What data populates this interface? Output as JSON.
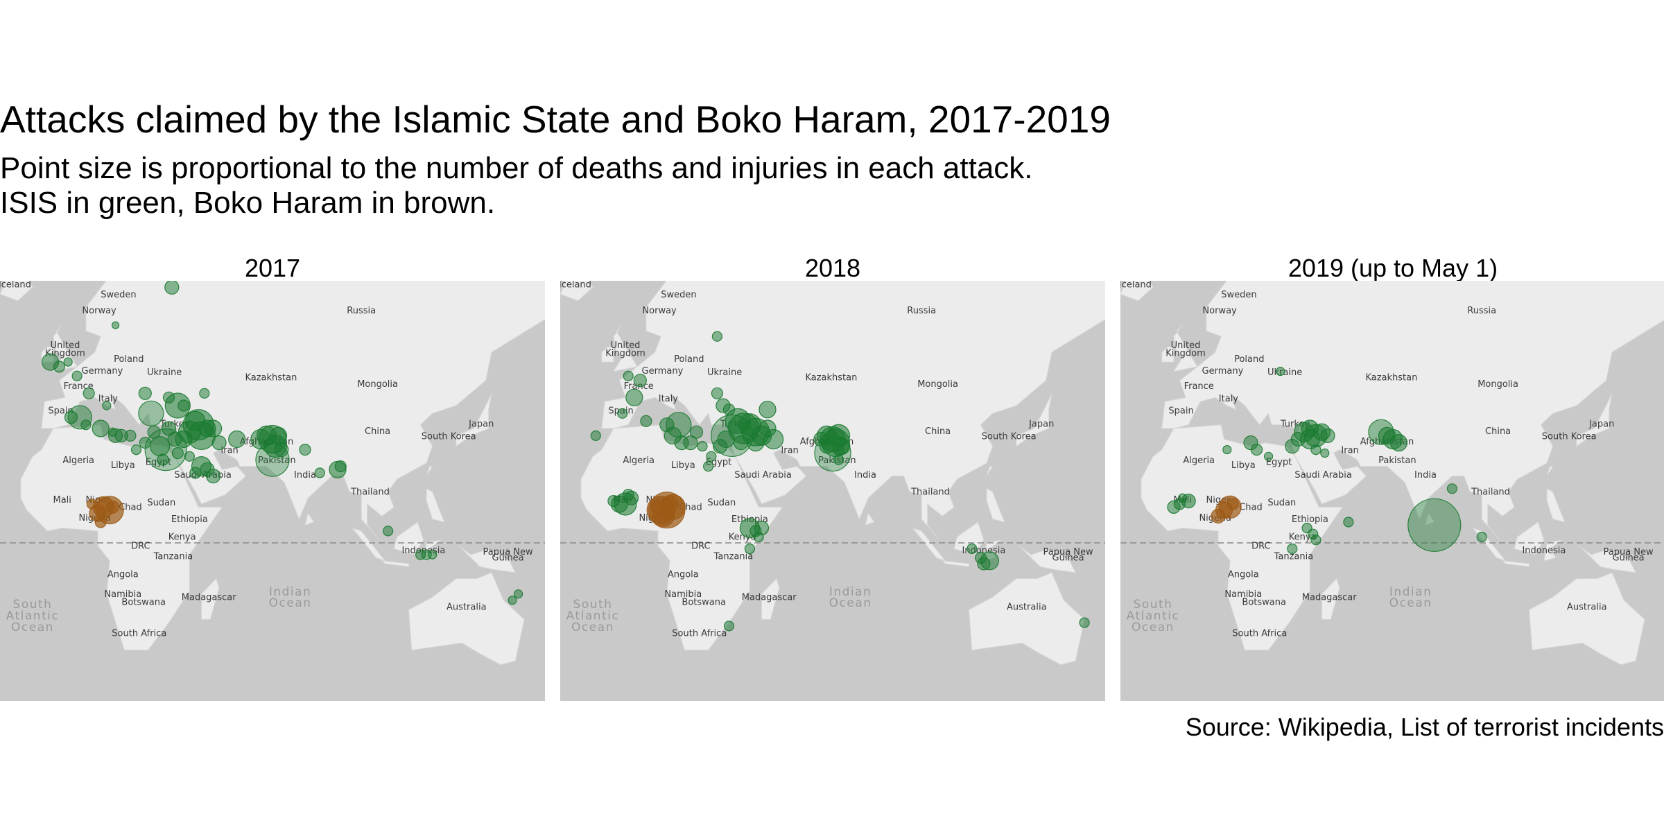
{
  "title": "Attacks claimed by the Islamic State and Boko Haram, 2017-2019",
  "subtitle_line1": "Point size is proportional to the number of deaths and injuries in each attack.",
  "subtitle_line2": "ISIS in green, Boko Haram in brown.",
  "source": "Source: Wikipedia, List of terrorist incidents",
  "colors": {
    "isis": "#1a7a30",
    "boko_haram": "#9c5a16",
    "water": "#c9c9c9",
    "land": "#ececec",
    "equator": "#8a8a8a"
  },
  "map_labels": [
    {
      "text": "Iceland",
      "lon": -19,
      "lat": 65,
      "kind": "country"
    },
    {
      "text": "Sweden",
      "lon": 16,
      "lat": 63.5,
      "kind": "country"
    },
    {
      "text": "Norway",
      "lon": 9.5,
      "lat": 61,
      "kind": "country"
    },
    {
      "text": "Russia",
      "lon": 98,
      "lat": 61,
      "kind": "country"
    },
    {
      "text": "United",
      "lon": -2,
      "lat": 54.8,
      "kind": "country"
    },
    {
      "text": "Kingdom",
      "lon": -2,
      "lat": 53.2,
      "kind": "country"
    },
    {
      "text": "Poland",
      "lon": 19.5,
      "lat": 52,
      "kind": "country"
    },
    {
      "text": "Germany",
      "lon": 10.5,
      "lat": 49.5,
      "kind": "country"
    },
    {
      "text": "Ukraine",
      "lon": 31.5,
      "lat": 49.2,
      "kind": "country"
    },
    {
      "text": "Kazakhstan",
      "lon": 67.5,
      "lat": 48,
      "kind": "country"
    },
    {
      "text": "Mongolia",
      "lon": 103.5,
      "lat": 46.5,
      "kind": "country"
    },
    {
      "text": "France",
      "lon": 2.5,
      "lat": 46,
      "kind": "country"
    },
    {
      "text": "Italy",
      "lon": 12.5,
      "lat": 43,
      "kind": "country"
    },
    {
      "text": "Spain",
      "lon": -3.5,
      "lat": 40,
      "kind": "country"
    },
    {
      "text": "Japan",
      "lon": 138.5,
      "lat": 36.5,
      "kind": "country"
    },
    {
      "text": "China",
      "lon": 103.5,
      "lat": 34.5,
      "kind": "country"
    },
    {
      "text": "South Korea",
      "lon": 127.5,
      "lat": 33,
      "kind": "country"
    },
    {
      "text": "Turkey",
      "lon": 35,
      "lat": 36.5,
      "kind": "country"
    },
    {
      "text": "Afghanistan",
      "lon": 66,
      "lat": 31.5,
      "kind": "country"
    },
    {
      "text": "Iran",
      "lon": 53.5,
      "lat": 29,
      "kind": "country"
    },
    {
      "text": "Algeria",
      "lon": 2.5,
      "lat": 26,
      "kind": "country"
    },
    {
      "text": "Libya",
      "lon": 17.5,
      "lat": 24.5,
      "kind": "country"
    },
    {
      "text": "Egypt",
      "lon": 29.5,
      "lat": 25.5,
      "kind": "country"
    },
    {
      "text": "Pakistan",
      "lon": 69.5,
      "lat": 26,
      "kind": "country"
    },
    {
      "text": "Saudi Arabia",
      "lon": 44.5,
      "lat": 21.5,
      "kind": "country"
    },
    {
      "text": "India",
      "lon": 79,
      "lat": 21.5,
      "kind": "country"
    },
    {
      "text": "Thailand",
      "lon": 101,
      "lat": 16,
      "kind": "country"
    },
    {
      "text": "Mali",
      "lon": -3,
      "lat": 13.5,
      "kind": "country"
    },
    {
      "text": "Niger",
      "lon": 9,
      "lat": 13.5,
      "kind": "country"
    },
    {
      "text": "Chad",
      "lon": 20,
      "lat": 11,
      "kind": "country"
    },
    {
      "text": "Sudan",
      "lon": 30.5,
      "lat": 12.5,
      "kind": "country"
    },
    {
      "text": "Nigeria",
      "lon": 8,
      "lat": 7.5,
      "kind": "country"
    },
    {
      "text": "Ethiopia",
      "lon": 40,
      "lat": 7,
      "kind": "country"
    },
    {
      "text": "Kenya",
      "lon": 37.5,
      "lat": 1,
      "kind": "country"
    },
    {
      "text": "DRC",
      "lon": 23.5,
      "lat": -2,
      "kind": "country"
    },
    {
      "text": "Indonesia",
      "lon": 119,
      "lat": -3.5,
      "kind": "country"
    },
    {
      "text": "Papua New",
      "lon": 147.5,
      "lat": -4,
      "kind": "country"
    },
    {
      "text": "Guinea",
      "lon": 147.5,
      "lat": -6,
      "kind": "country"
    },
    {
      "text": "Tanzania",
      "lon": 34.5,
      "lat": -5.5,
      "kind": "country"
    },
    {
      "text": "Angola",
      "lon": 17.5,
      "lat": -11.5,
      "kind": "country"
    },
    {
      "text": "Namibia",
      "lon": 17.5,
      "lat": -18,
      "kind": "country"
    },
    {
      "text": "Madagascar",
      "lon": 46.5,
      "lat": -19,
      "kind": "country"
    },
    {
      "text": "Botswana",
      "lon": 24.5,
      "lat": -20.5,
      "kind": "country"
    },
    {
      "text": "Australia",
      "lon": 133.5,
      "lat": -22,
      "kind": "country"
    },
    {
      "text": "South Africa",
      "lon": 23,
      "lat": -30,
      "kind": "country"
    },
    {
      "text": "Indian",
      "lon": 74,
      "lat": -17.5,
      "kind": "ocean"
    },
    {
      "text": "Ocean",
      "lon": 74,
      "lat": -21,
      "kind": "ocean"
    },
    {
      "text": "South",
      "lon": -13,
      "lat": -21.5,
      "kind": "ocean"
    },
    {
      "text": "Atlantic",
      "lon": -13,
      "lat": -25,
      "kind": "ocean"
    },
    {
      "text": "Ocean",
      "lon": -13,
      "lat": -28.5,
      "kind": "ocean"
    }
  ],
  "panels": [
    {
      "id": "2017",
      "label": "2017",
      "isis": [
        [
          36,
          42,
          18,
          0.55
        ],
        [
          40,
          35,
          16,
          0.55
        ],
        [
          42,
          38,
          14,
          0.55
        ],
        [
          44,
          34,
          20,
          0.55
        ],
        [
          38,
          33,
          12,
          0.55
        ],
        [
          33,
          36,
          10,
          0.55
        ],
        [
          46,
          36,
          12,
          0.55
        ],
        [
          43,
          37,
          22,
          0.55
        ],
        [
          32,
          30,
          30,
          0.35
        ],
        [
          30,
          31,
          14,
          0.5
        ],
        [
          31,
          27,
          8,
          0.5
        ],
        [
          35,
          33,
          10,
          0.5
        ],
        [
          48,
          36,
          12,
          0.5
        ],
        [
          50,
          32,
          10,
          0.5
        ],
        [
          36,
          29,
          8,
          0.5
        ],
        [
          28,
          35,
          9,
          0.5
        ],
        [
          56,
          33,
          12,
          0.5
        ],
        [
          40,
          28,
          7,
          0.5
        ],
        [
          66,
          34,
          14,
          0.55
        ],
        [
          68,
          33,
          20,
          0.55
        ],
        [
          69,
          31,
          16,
          0.55
        ],
        [
          70,
          34,
          12,
          0.55
        ],
        [
          68,
          27,
          24,
          0.35
        ],
        [
          64,
          33,
          14,
          0.5
        ],
        [
          71,
          30,
          10,
          0.5
        ],
        [
          -7,
          52,
          12,
          0.5
        ],
        [
          -4,
          51,
          8,
          0.5
        ],
        [
          2,
          49,
          7,
          0.5
        ],
        [
          -1,
          52,
          6,
          0.5
        ],
        [
          6,
          45,
          8,
          0.5
        ],
        [
          3,
          39,
          17,
          0.45
        ],
        [
          12,
          42,
          6,
          0.5
        ],
        [
          0,
          39,
          9,
          0.5
        ],
        [
          14,
          35,
          6,
          0.5
        ],
        [
          10,
          36,
          12,
          0.5
        ],
        [
          15,
          34,
          10,
          0.5
        ],
        [
          17,
          34,
          9,
          0.5
        ],
        [
          5,
          37,
          7,
          0.5
        ],
        [
          20,
          34,
          8,
          0.5
        ],
        [
          25,
          32,
          8,
          0.5
        ],
        [
          22,
          30,
          7,
          0.5
        ],
        [
          34,
          65,
          10,
          0.5
        ],
        [
          15,
          59,
          5,
          0.5
        ],
        [
          38,
          42,
          8,
          0.5
        ],
        [
          33,
          44,
          8,
          0.5
        ],
        [
          45,
          45,
          7,
          0.5
        ],
        [
          27,
          40,
          18,
          0.4
        ],
        [
          25,
          45,
          9,
          0.5
        ],
        [
          44,
          25,
          14,
          0.55
        ],
        [
          46,
          24,
          10,
          0.5
        ],
        [
          48,
          22,
          10,
          0.5
        ],
        [
          42,
          23,
          8,
          0.5
        ],
        [
          79,
          30,
          8,
          0.5
        ],
        [
          84,
          23,
          7,
          0.5
        ],
        [
          90,
          24,
          12,
          0.55
        ],
        [
          91,
          25,
          8,
          0.5
        ],
        [
          107,
          4,
          7,
          0.5
        ],
        [
          118,
          -4,
          7,
          0.5
        ],
        [
          120,
          -4,
          7,
          0.5
        ],
        [
          122,
          -4,
          6,
          0.5
        ],
        [
          149,
          -19,
          6,
          0.5
        ],
        [
          151,
          -17,
          6,
          0.5
        ]
      ],
      "boko": [
        [
          13,
          11,
          20,
          0.7
        ],
        [
          11,
          12,
          15,
          0.7
        ],
        [
          9,
          10,
          12,
          0.7
        ],
        [
          14,
          12,
          9,
          0.7
        ],
        [
          10,
          7,
          8,
          0.7
        ],
        [
          7,
          13,
          7,
          0.7
        ]
      ]
    },
    {
      "id": "2018",
      "label": "2018",
      "isis": [
        [
          36,
          38,
          18,
          0.55
        ],
        [
          38,
          36,
          22,
          0.55
        ],
        [
          40,
          37,
          16,
          0.55
        ],
        [
          42,
          35,
          20,
          0.55
        ],
        [
          44,
          34,
          14,
          0.55
        ],
        [
          34,
          34,
          30,
          0.35
        ],
        [
          32,
          33,
          12,
          0.5
        ],
        [
          46,
          36,
          12,
          0.5
        ],
        [
          30,
          31,
          10,
          0.5
        ],
        [
          37,
          32,
          10,
          0.5
        ],
        [
          48,
          33,
          14,
          0.5
        ],
        [
          42,
          32,
          12,
          0.5
        ],
        [
          66,
          34,
          14,
          0.55
        ],
        [
          68,
          33,
          18,
          0.55
        ],
        [
          70,
          34,
          16,
          0.55
        ],
        [
          69,
          32,
          20,
          0.55
        ],
        [
          71,
          31,
          12,
          0.55
        ],
        [
          68,
          29,
          26,
          0.35
        ],
        [
          64,
          33,
          10,
          0.5
        ],
        [
          70,
          30,
          8,
          0.5
        ],
        [
          66,
          31,
          10,
          0.5
        ],
        [
          70,
          27,
          7,
          0.5
        ],
        [
          3,
          48,
          9,
          0.5
        ],
        [
          -1,
          49,
          7,
          0.5
        ],
        [
          1,
          44,
          12,
          0.5
        ],
        [
          -3,
          40,
          7,
          0.5
        ],
        [
          5,
          38,
          8,
          0.5
        ],
        [
          12,
          37,
          10,
          0.5
        ],
        [
          16,
          37,
          18,
          0.45
        ],
        [
          14,
          34,
          12,
          0.5
        ],
        [
          17,
          32,
          10,
          0.5
        ],
        [
          20,
          32,
          10,
          0.5
        ],
        [
          24,
          31,
          7,
          0.5
        ],
        [
          -12,
          34,
          7,
          0.5
        ],
        [
          22,
          35,
          9,
          0.5
        ],
        [
          27,
          28,
          7,
          0.5
        ],
        [
          26,
          25,
          7,
          0.5
        ],
        [
          29,
          57,
          7,
          0.5
        ],
        [
          29,
          45,
          8,
          0.5
        ],
        [
          31,
          42,
          10,
          0.5
        ],
        [
          33,
          41,
          8,
          0.5
        ],
        [
          46,
          41,
          12,
          0.5
        ],
        [
          -4,
          13,
          12,
          0.55
        ],
        [
          -2,
          13,
          16,
          0.55
        ],
        [
          0,
          15,
          10,
          0.55
        ],
        [
          -6,
          14,
          8,
          0.5
        ],
        [
          -1,
          16,
          8,
          0.5
        ],
        [
          40,
          5,
          14,
          0.55
        ],
        [
          44,
          5,
          10,
          0.5
        ],
        [
          42,
          4,
          8,
          0.5
        ],
        [
          43,
          2,
          7,
          0.5
        ],
        [
          40,
          -2,
          7,
          0.5
        ],
        [
          115,
          -2,
          7,
          0.5
        ],
        [
          118,
          -5,
          8,
          0.5
        ],
        [
          121,
          -6,
          13,
          0.5
        ],
        [
          119,
          -7,
          9,
          0.5
        ],
        [
          33,
          -27,
          7,
          0.5
        ],
        [
          153,
          -26,
          7,
          0.5
        ]
      ],
      "boko": [
        [
          12,
          11,
          26,
          0.7
        ],
        [
          10,
          11,
          20,
          0.7
        ],
        [
          14,
          12,
          18,
          0.7
        ],
        [
          11,
          9,
          15,
          0.7
        ],
        [
          13,
          13,
          12,
          0.7
        ],
        [
          9,
          12,
          10,
          0.7
        ]
      ]
    },
    {
      "id": "2019",
      "label": "2019 (up to May 1)",
      "isis": [
        [
          40,
          36,
          12,
          0.55
        ],
        [
          38,
          35,
          14,
          0.55
        ],
        [
          42,
          34,
          16,
          0.55
        ],
        [
          44,
          35,
          12,
          0.55
        ],
        [
          36,
          33,
          10,
          0.5
        ],
        [
          40,
          33,
          14,
          0.5
        ],
        [
          34,
          31,
          10,
          0.5
        ],
        [
          46,
          34,
          10,
          0.5
        ],
        [
          66,
          34,
          12,
          0.55
        ],
        [
          68,
          33,
          14,
          0.55
        ],
        [
          70,
          32,
          12,
          0.55
        ],
        [
          64,
          35,
          18,
          0.45
        ],
        [
          42,
          30,
          7,
          0.5
        ],
        [
          45,
          29,
          6,
          0.5
        ],
        [
          20,
          32,
          10,
          0.5
        ],
        [
          22,
          30,
          8,
          0.5
        ],
        [
          12,
          30,
          6,
          0.5
        ],
        [
          26,
          28,
          6,
          0.5
        ],
        [
          30,
          50,
          6,
          0.5
        ],
        [
          -4,
          13,
          8,
          0.55
        ],
        [
          -1,
          14,
          10,
          0.55
        ],
        [
          -3,
          15,
          6,
          0.5
        ],
        [
          -6,
          12,
          9,
          0.5
        ],
        [
          39,
          5,
          7,
          0.5
        ],
        [
          41,
          3,
          7,
          0.5
        ],
        [
          42,
          1,
          7,
          0.5
        ],
        [
          34,
          -2,
          7,
          0.5
        ],
        [
          53,
          7,
          7,
          0.5
        ],
        [
          82,
          6,
          38,
          0.4
        ],
        [
          98,
          2,
          7,
          0.5
        ],
        [
          88,
          18,
          7,
          0.5
        ]
      ],
      "boko": [
        [
          13,
          12,
          16,
          0.7
        ],
        [
          11,
          11,
          12,
          0.7
        ],
        [
          9,
          9,
          10,
          0.7
        ],
        [
          14,
          13,
          8,
          0.7
        ]
      ]
    }
  ]
}
